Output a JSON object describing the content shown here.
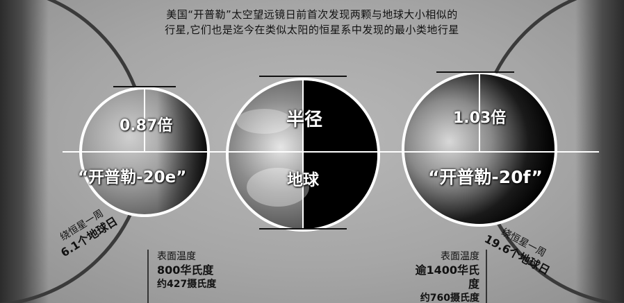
{
  "header": {
    "line1": "美国“开普勒”太空望远镜日前首次发现两颗与地球大小相似的",
    "line2": "行星,它们也是迄今在类似太阳的恒星系中发现的最小类地行星"
  },
  "planets": {
    "left": {
      "ratio": "0.87倍",
      "name": "“开普勒-20e”"
    },
    "center": {
      "top_label": "半径",
      "bottom_label": "地球"
    },
    "right": {
      "ratio": "1.03倍",
      "name": "“开普勒-20f”"
    }
  },
  "orbits": {
    "left": {
      "line1": "绕恒星一周",
      "line2": "6.1个地球日"
    },
    "right": {
      "line1": "绕恒星一周",
      "line2": "19.6个地球日"
    }
  },
  "temperatures": {
    "left": {
      "label": "表面温度",
      "f": "800华氏度",
      "c": "约427摄氏度"
    },
    "right": {
      "label": "表面温度",
      "f": "逾1400华氏度",
      "c": "约760摄氏度"
    }
  }
}
